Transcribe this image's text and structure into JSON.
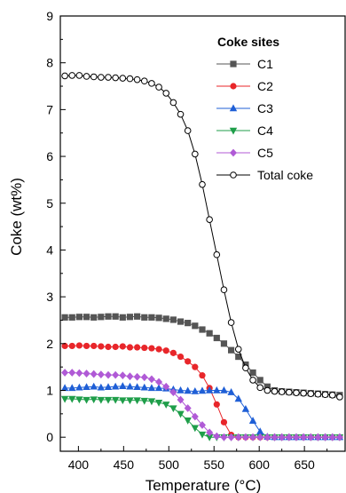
{
  "chart_data": {
    "type": "scatter",
    "xlabel": "Temperature (°C)",
    "ylabel": "Coke (wt%)",
    "xlim": [
      380,
      695
    ],
    "ylim": [
      -0.3,
      9
    ],
    "xticks": [
      400,
      450,
      500,
      550,
      600,
      650
    ],
    "yticks": [
      0,
      1,
      2,
      3,
      4,
      5,
      6,
      7,
      8,
      9
    ],
    "legend": {
      "title": "Coke sites",
      "position": "top-right"
    },
    "x": [
      385,
      393,
      401,
      409,
      417,
      425,
      433,
      441,
      449,
      457,
      465,
      473,
      481,
      489,
      497,
      505,
      513,
      521,
      529,
      537,
      545,
      553,
      561,
      569,
      577,
      585,
      593,
      601,
      609,
      617,
      625,
      633,
      641,
      649,
      657,
      665,
      673,
      681,
      689
    ],
    "series": [
      {
        "name": "C1",
        "color": "#555555",
        "marker": "square",
        "values": [
          2.56,
          2.56,
          2.57,
          2.57,
          2.56,
          2.57,
          2.58,
          2.58,
          2.56,
          2.57,
          2.58,
          2.56,
          2.56,
          2.55,
          2.53,
          2.51,
          2.47,
          2.44,
          2.38,
          2.3,
          2.22,
          2.12,
          2.0,
          1.86,
          1.72,
          1.55,
          1.38,
          1.22,
          1.08,
          1.0,
          0.98,
          0.97,
          0.96,
          0.95,
          0.94,
          0.93,
          0.92,
          0.91,
          0.9
        ]
      },
      {
        "name": "C2",
        "color": "#e8262a",
        "marker": "circle",
        "values": [
          1.95,
          1.95,
          1.96,
          1.95,
          1.95,
          1.94,
          1.93,
          1.93,
          1.94,
          1.92,
          1.92,
          1.91,
          1.9,
          1.88,
          1.85,
          1.8,
          1.72,
          1.62,
          1.5,
          1.32,
          1.05,
          0.7,
          0.32,
          0.05,
          0.0,
          0.0,
          0.0,
          0.0,
          0.0,
          0.0,
          0.0,
          0.0,
          0.0,
          0.0,
          0.0,
          0.0,
          0.0,
          0.0,
          0.0
        ]
      },
      {
        "name": "C3",
        "color": "#1f5fd6",
        "marker": "triangle-up",
        "values": [
          1.05,
          1.05,
          1.06,
          1.07,
          1.08,
          1.06,
          1.07,
          1.08,
          1.09,
          1.08,
          1.07,
          1.06,
          1.05,
          1.05,
          1.04,
          1.02,
          1.0,
          0.99,
          0.98,
          0.99,
          1.0,
          1.0,
          1.0,
          0.96,
          0.82,
          0.6,
          0.35,
          0.12,
          0.01,
          0.0,
          0.0,
          0.0,
          0.0,
          0.0,
          0.0,
          0.0,
          0.0,
          0.0,
          0.0
        ]
      },
      {
        "name": "C4",
        "color": "#1f9e4a",
        "marker": "triangle-down",
        "values": [
          0.82,
          0.82,
          0.81,
          0.8,
          0.81,
          0.8,
          0.8,
          0.8,
          0.79,
          0.79,
          0.79,
          0.78,
          0.77,
          0.74,
          0.7,
          0.62,
          0.5,
          0.36,
          0.2,
          0.06,
          0.0,
          0.0,
          0.0,
          0.0,
          0.0,
          0.0,
          0.0,
          0.0,
          0.0,
          0.0,
          0.0,
          0.0,
          0.0,
          0.0,
          0.0,
          0.0,
          0.0,
          0.0,
          0.0
        ]
      },
      {
        "name": "C5",
        "color": "#b05ad6",
        "marker": "diamond",
        "values": [
          1.38,
          1.38,
          1.37,
          1.36,
          1.35,
          1.34,
          1.33,
          1.33,
          1.32,
          1.3,
          1.29,
          1.28,
          1.24,
          1.18,
          1.08,
          0.96,
          0.8,
          0.62,
          0.44,
          0.26,
          0.1,
          0.02,
          0.0,
          0.0,
          0.0,
          0.0,
          0.0,
          0.0,
          0.0,
          0.0,
          0.0,
          0.0,
          0.0,
          0.0,
          0.0,
          0.0,
          0.0,
          0.0,
          0.0
        ]
      },
      {
        "name": "Total coke",
        "color": "#000000",
        "marker": "open-circle",
        "values": [
          7.72,
          7.73,
          7.73,
          7.71,
          7.7,
          7.69,
          7.69,
          7.68,
          7.67,
          7.66,
          7.64,
          7.61,
          7.56,
          7.48,
          7.35,
          7.15,
          6.9,
          6.55,
          6.05,
          5.4,
          4.65,
          3.9,
          3.15,
          2.45,
          1.88,
          1.48,
          1.22,
          1.06,
          1.0,
          0.98,
          0.97,
          0.96,
          0.95,
          0.94,
          0.93,
          0.92,
          0.91,
          0.9,
          0.86
        ]
      }
    ]
  }
}
